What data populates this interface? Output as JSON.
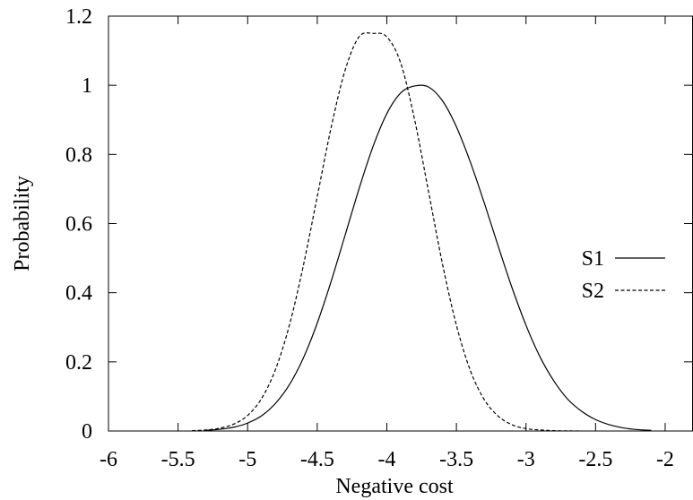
{
  "chart_data": {
    "type": "line",
    "xlabel": "Negative cost",
    "ylabel": "Probability",
    "xlim": [
      -6,
      -1.8
    ],
    "ylim": [
      0,
      1.2
    ],
    "x_ticks": [
      -6,
      -5.5,
      -5,
      -4.5,
      -4,
      -3.5,
      -3,
      -2.5,
      -2
    ],
    "x_tick_labels": [
      "-6",
      "-5.5",
      "-5",
      "-4.5",
      "-4",
      "-3.5",
      "-3",
      "-2.5",
      "-2"
    ],
    "y_ticks": [
      0,
      0.2,
      0.4,
      0.6,
      0.8,
      1,
      1.2
    ],
    "y_tick_labels": [
      "0",
      "0.2",
      "0.4",
      "0.6",
      "0.8",
      "1",
      "1.2"
    ],
    "grid": false,
    "legend_position": "right",
    "series": [
      {
        "name": "S1",
        "line_style": "solid",
        "color": "#000000",
        "x": [
          -5.3,
          -5.2,
          -5.1,
          -5.0,
          -4.9,
          -4.8,
          -4.7,
          -4.6,
          -4.5,
          -4.4,
          -4.3,
          -4.2,
          -4.1,
          -4.0,
          -3.9,
          -3.8,
          -3.7,
          -3.6,
          -3.5,
          -3.4,
          -3.3,
          -3.2,
          -3.1,
          -3.0,
          -2.9,
          -2.8,
          -2.7,
          -2.6,
          -2.5,
          -2.4,
          -2.3,
          -2.2,
          -2.1
        ],
        "values": [
          0.002,
          0.005,
          0.011,
          0.023,
          0.044,
          0.08,
          0.134,
          0.211,
          0.312,
          0.433,
          0.566,
          0.7,
          0.822,
          0.918,
          0.978,
          0.998,
          0.995,
          0.955,
          0.88,
          0.778,
          0.66,
          0.535,
          0.414,
          0.306,
          0.215,
          0.145,
          0.092,
          0.057,
          0.033,
          0.018,
          0.009,
          0.004,
          0.002
        ]
      },
      {
        "name": "S2",
        "line_style": "dashed",
        "color": "#000000",
        "x": [
          -5.4,
          -5.3,
          -5.2,
          -5.1,
          -5.0,
          -4.9,
          -4.8,
          -4.7,
          -4.6,
          -4.5,
          -4.4,
          -4.3,
          -4.2,
          -4.1,
          -4.0,
          -3.9,
          -3.8,
          -3.7,
          -3.6,
          -3.5,
          -3.4,
          -3.3,
          -3.2,
          -3.1,
          -3.0,
          -2.9,
          -2.8,
          -2.7,
          -2.6
        ],
        "values": [
          0.001,
          0.003,
          0.008,
          0.02,
          0.045,
          0.094,
          0.178,
          0.306,
          0.478,
          0.678,
          0.878,
          1.043,
          1.14,
          1.15,
          1.14,
          1.064,
          0.9,
          0.692,
          0.483,
          0.306,
          0.175,
          0.091,
          0.043,
          0.018,
          0.007,
          0.003,
          0.001,
          0.0003,
          0.0001
        ]
      }
    ]
  }
}
